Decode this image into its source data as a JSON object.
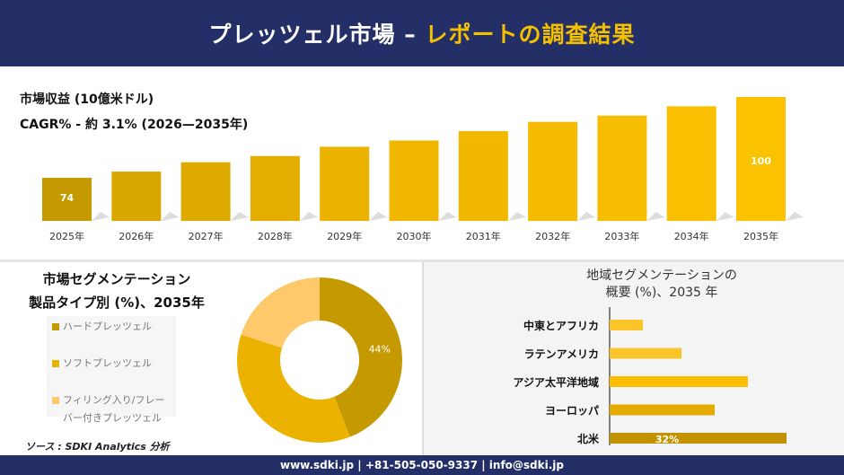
{
  "header": {
    "title_main": "プレッツェル市場 –",
    "title_accent": "レポートの調査結果"
  },
  "revenue": {
    "title": "市場収益 (10億米ドル)",
    "cagr": "CAGR% - 約 3.1% (2026—2035年)"
  },
  "chart_data": [
    {
      "type": "bar",
      "title": "市場収益 (10億米ドル)",
      "categories": [
        "2025年",
        "2026年",
        "2027年",
        "2028年",
        "2029年",
        "2030年",
        "2031年",
        "2032年",
        "2033年",
        "2034年",
        "2035年"
      ],
      "values": [
        74,
        76,
        79,
        81,
        84,
        86,
        89,
        92,
        94,
        97,
        100
      ],
      "data_labels": {
        "0": "74",
        "10": "100"
      },
      "colors": [
        "#c49a00",
        "#d9a700",
        "#dfab00",
        "#e4ae00",
        "#ebb200",
        "#f0b600",
        "#f2b800",
        "#f5bb00",
        "#f7bd00",
        "#f9bf00",
        "#fbc200"
      ]
    },
    {
      "type": "pie",
      "title": "市場セグメンテーション 製品タイプ別 (%)、2035年",
      "series": [
        {
          "name": "ハードプレッツェル",
          "value": 44,
          "color": "#c49a00"
        },
        {
          "name": "ソフトプレッツェル",
          "value": 36,
          "color": "#ebb300"
        },
        {
          "name": "フィリング入り/フレーバー付きプレッツェル",
          "value": 20,
          "color": "#fdc96a"
        }
      ],
      "data_labels": {
        "0": "44%"
      }
    },
    {
      "type": "bar",
      "orientation": "horizontal",
      "title": "地域セグメンテーションの 概要 (%)、2035 年",
      "categories": [
        "中東とアフリカ",
        "ラテンアメリカ",
        "アジア太平洋地域",
        "ヨーロッパ",
        "北米"
      ],
      "values": [
        6,
        13,
        25,
        19,
        32
      ],
      "data_labels": {
        "4": "32%"
      },
      "colors": [
        "#fbc52a",
        "#fbc52a",
        "#fdbd00",
        "#e4ab00",
        "#c29200"
      ]
    }
  ],
  "segment": {
    "title_line1": "市場セグメンテーション",
    "title_line2": "製品タイプ別 (%)、2035年",
    "legend": [
      "ハードプレッツェル",
      "ソフトプレッツェル",
      "フィリング入り/フレーバー付きプレッツェル"
    ]
  },
  "region": {
    "title_line1": "地域セグメンテーションの",
    "title_line2": "概要 (%)、2035 年"
  },
  "source": "ソース : SDKI Analytics 分析",
  "footer": "www.sdki.jp | +81-505-050-9337 | info@sdki.jp"
}
